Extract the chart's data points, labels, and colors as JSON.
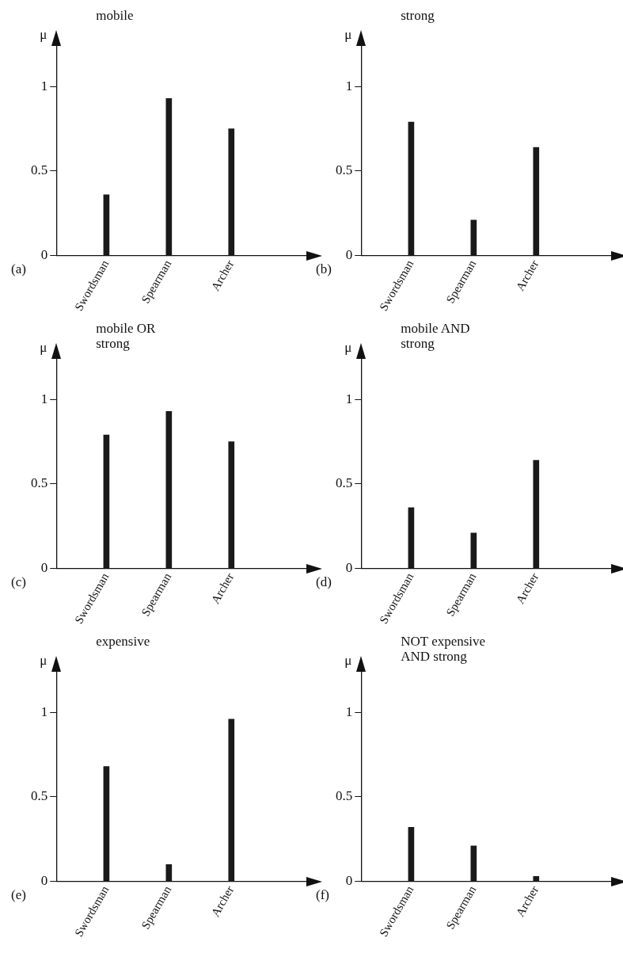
{
  "chart_data": [
    {
      "type": "bar",
      "title": "mobile",
      "ylabel": "μ",
      "categories": [
        "Swordsman",
        "Spearman",
        "Archer"
      ],
      "values": [
        0.36,
        0.93,
        0.75
      ],
      "color": "#1a1a1a",
      "ylim": [
        0,
        1.25
      ],
      "yticks": [
        0,
        0.5,
        1
      ],
      "grid": false,
      "legend": false,
      "annotations": [
        "(a)"
      ]
    },
    {
      "type": "bar",
      "title": "strong",
      "ylabel": "μ",
      "categories": [
        "Swordsman",
        "Spearman",
        "Archer"
      ],
      "values": [
        0.79,
        0.21,
        0.64
      ],
      "color": "#1a1a1a",
      "ylim": [
        0,
        1.25
      ],
      "yticks": [
        0,
        0.5,
        1
      ],
      "grid": false,
      "legend": false,
      "annotations": [
        "(b)"
      ]
    },
    {
      "type": "bar",
      "title": "mobile OR strong",
      "ylabel": "μ",
      "categories": [
        "Swordsman",
        "Spearman",
        "Archer"
      ],
      "values": [
        0.79,
        0.93,
        0.75
      ],
      "color": "#1a1a1a",
      "ylim": [
        0,
        1.25
      ],
      "yticks": [
        0,
        0.5,
        1
      ],
      "grid": false,
      "legend": false,
      "annotations": [
        "(c)"
      ]
    },
    {
      "type": "bar",
      "title": "mobile AND strong",
      "ylabel": "μ",
      "categories": [
        "Swordsman",
        "Spearman",
        "Archer"
      ],
      "values": [
        0.36,
        0.21,
        0.64
      ],
      "color": "#1a1a1a",
      "ylim": [
        0,
        1.25
      ],
      "yticks": [
        0,
        0.5,
        1
      ],
      "grid": false,
      "legend": false,
      "annotations": [
        "(d)"
      ]
    },
    {
      "type": "bar",
      "title": "expensive",
      "ylabel": "μ",
      "categories": [
        "Swordsman",
        "Spearman",
        "Archer"
      ],
      "values": [
        0.68,
        0.1,
        0.96
      ],
      "color": "#1a1a1a",
      "ylim": [
        0,
        1.25
      ],
      "yticks": [
        0,
        0.5,
        1
      ],
      "grid": false,
      "legend": false,
      "annotations": [
        "(e)"
      ]
    },
    {
      "type": "bar",
      "title": "NOT expensive AND strong",
      "ylabel": "μ",
      "categories": [
        "Swordsman",
        "Spearman",
        "Archer"
      ],
      "values": [
        0.32,
        0.21,
        0.03
      ],
      "color": "#1a1a1a",
      "ylim": [
        0,
        1.25
      ],
      "yticks": [
        0,
        0.5,
        1
      ],
      "grid": false,
      "legend": false,
      "annotations": [
        "(f)"
      ]
    }
  ]
}
